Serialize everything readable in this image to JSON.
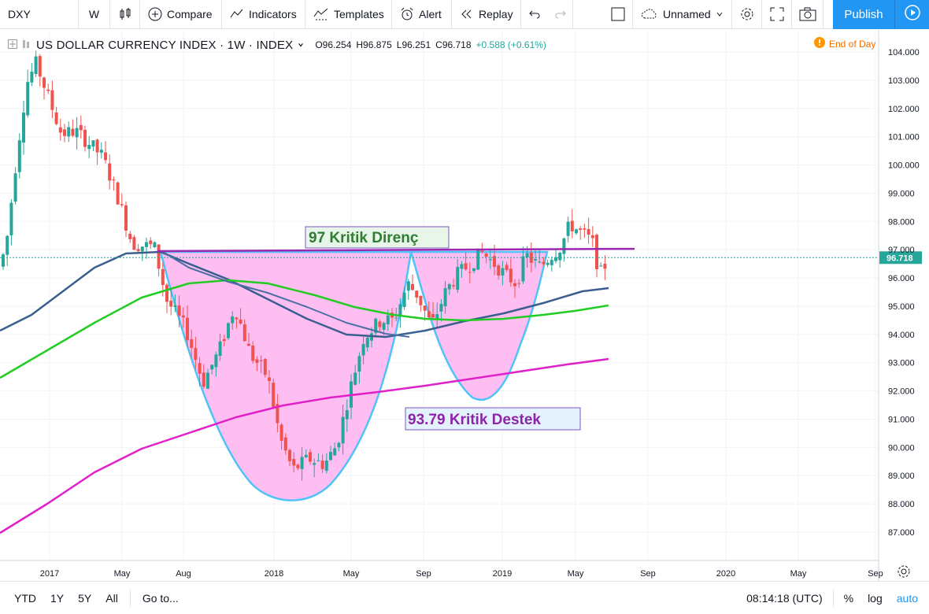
{
  "toolbar": {
    "symbol": "DXY",
    "interval": "W",
    "compare": "Compare",
    "indicators": "Indicators",
    "templates": "Templates",
    "alert": "Alert",
    "replay": "Replay",
    "layout_name": "Unnamed",
    "publish": "Publish"
  },
  "legend": {
    "title": "US DOLLAR CURRENCY INDEX · 1W · INDEX",
    "open": "O96.254",
    "high": "H96.875",
    "low": "L96.251",
    "close": "C96.718",
    "change": "+0.588 (+0.61%)"
  },
  "status": {
    "end_of_day": "End of Day"
  },
  "bottom": {
    "ranges": [
      "YTD",
      "1Y",
      "5Y",
      "All"
    ],
    "goto": "Go to...",
    "time": "08:14:18 (UTC)",
    "percent": "%",
    "log": "log",
    "auto": "auto"
  },
  "chart_data": {
    "type": "candlestick",
    "price_axis": [
      "104.000",
      "103.000",
      "102.000",
      "101.000",
      "100.000",
      "99.000",
      "98.000",
      "97.000",
      "96.000",
      "95.000",
      "94.000",
      "93.000",
      "92.000",
      "91.000",
      "90.000",
      "89.000",
      "88.000",
      "87.000"
    ],
    "time_axis": [
      "2017",
      "May",
      "Aug",
      "2018",
      "May",
      "Sep",
      "2019",
      "May",
      "Sep",
      "2020",
      "May",
      "Sep"
    ],
    "last_price": "96.718",
    "annotations": {
      "resistance": "97 Kritik Direnç",
      "support": "93.79 Kritik Destek"
    },
    "colors": {
      "up": "#26a69a",
      "down": "#ef5350",
      "ma_blue": "#3a5f8f",
      "ma_green": "#4caf50",
      "ma_lime": "#22cc22",
      "ma_magenta": "#e020c8",
      "resistance_line": "#9c27b0",
      "pattern_fill": "#ffb3f0",
      "pattern_outline": "#4fc3f7"
    }
  }
}
